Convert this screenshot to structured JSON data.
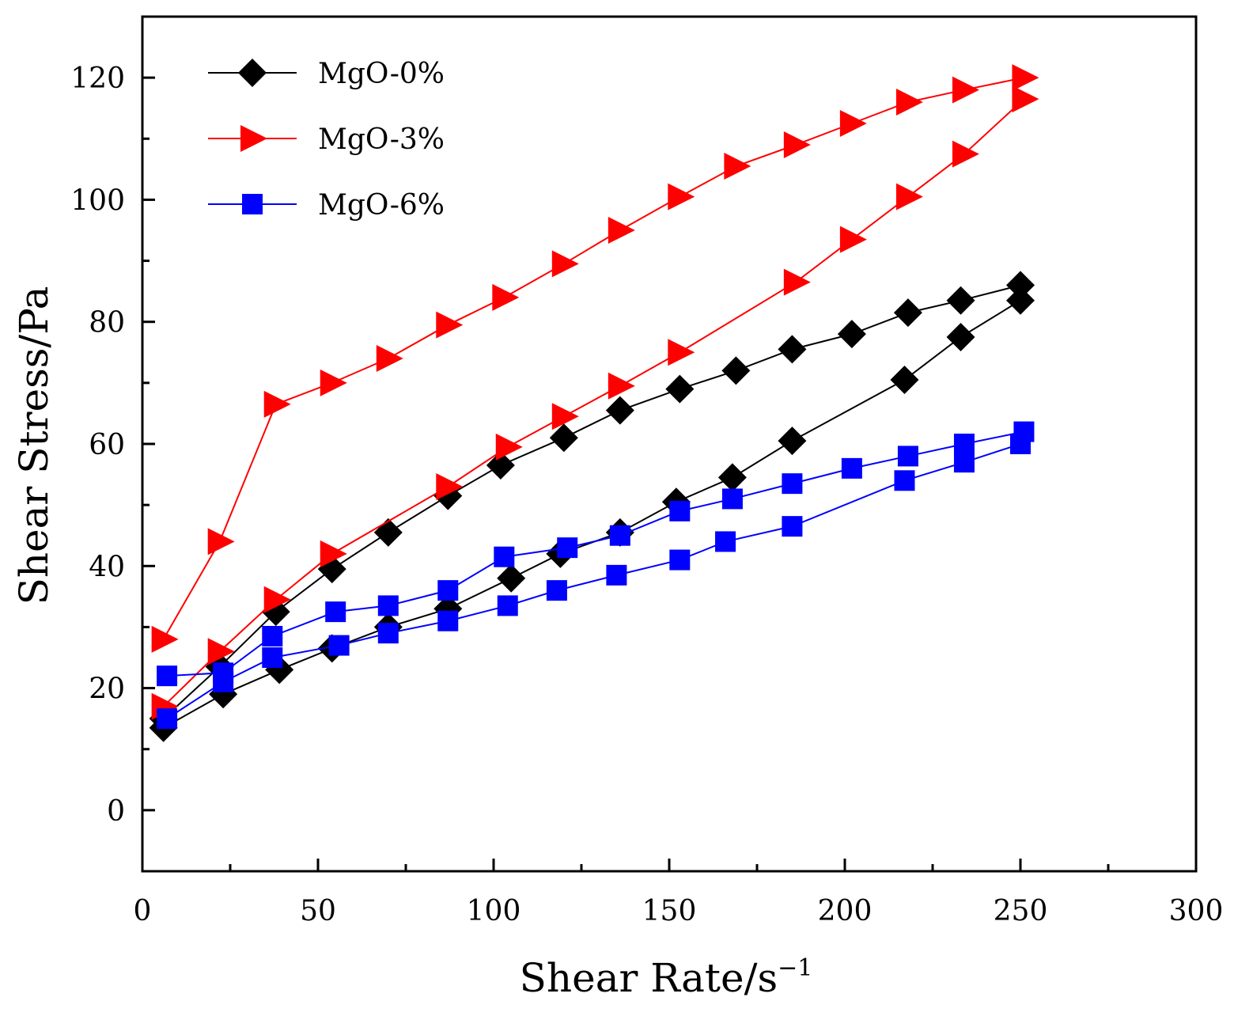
{
  "chart_data": {
    "type": "line",
    "title": "",
    "xlabel": "Shear Rate/s",
    "xlabel_superscript": "−1",
    "ylabel": "Shear Stress/Pa",
    "xlim": [
      0,
      300
    ],
    "ylim": [
      -10,
      130
    ],
    "xticks": [
      0,
      50,
      100,
      150,
      200,
      250,
      300
    ],
    "yticks": [
      0,
      20,
      40,
      60,
      80,
      100,
      120
    ],
    "grid": false,
    "legend_position": "top-left",
    "series": [
      {
        "name": "MgO-0%",
        "color": "#000000",
        "marker": "diamond",
        "up": {
          "x": [
            6,
            22,
            38,
            54,
            70,
            87,
            102,
            120,
            136,
            153,
            169,
            185,
            202,
            218,
            233,
            250
          ],
          "y": [
            15,
            23.5,
            32.5,
            39.5,
            45.5,
            51.5,
            56.5,
            61,
            65.5,
            69,
            72,
            75.5,
            78,
            81.5,
            83.5,
            86
          ]
        },
        "down": {
          "x": [
            250,
            233,
            217,
            185,
            168,
            152,
            136,
            119,
            105,
            87,
            70,
            54,
            39,
            23,
            6
          ],
          "y": [
            83.5,
            77.5,
            70.5,
            60.5,
            54.5,
            50.5,
            45.5,
            42,
            38,
            33,
            30,
            26.5,
            23,
            19,
            13.5
          ]
        }
      },
      {
        "name": "MgO-3%",
        "color": "#ff0000",
        "marker": "triangle-right",
        "up": {
          "x": [
            6,
            22,
            38,
            54,
            70,
            87,
            103,
            120,
            136,
            153,
            169,
            186,
            202,
            218,
            234,
            251
          ],
          "y": [
            28,
            44,
            66.5,
            70,
            74,
            79.5,
            84,
            89.5,
            95,
            100.5,
            105.5,
            109,
            112.5,
            116,
            118,
            120
          ]
        },
        "down": {
          "x": [
            251,
            234,
            218,
            202,
            186,
            153,
            136,
            120,
            104,
            87,
            54,
            38,
            22,
            6
          ],
          "y": [
            116.5,
            107.5,
            100.5,
            93.5,
            86.5,
            75,
            69.5,
            64.5,
            59.5,
            53,
            42,
            34.5,
            26,
            17
          ]
        }
      },
      {
        "name": "MgO-6%",
        "color": "#0000ff",
        "marker": "square",
        "up": {
          "x": [
            7,
            23,
            37,
            55,
            70,
            87,
            103,
            121,
            136,
            153,
            168,
            185,
            202,
            218,
            234,
            251
          ],
          "y": [
            22,
            22.5,
            28.5,
            32.5,
            33.5,
            36,
            41.5,
            43,
            45,
            49,
            51,
            53.5,
            56,
            58,
            60,
            62
          ]
        },
        "down": {
          "x": [
            250,
            234,
            217,
            185,
            166,
            153,
            135,
            118,
            104,
            87,
            70,
            56,
            37,
            23,
            7
          ],
          "y": [
            60,
            57,
            54,
            46.5,
            44,
            41,
            38.5,
            36,
            33.5,
            31,
            29,
            27,
            25,
            21,
            15
          ]
        }
      }
    ]
  }
}
